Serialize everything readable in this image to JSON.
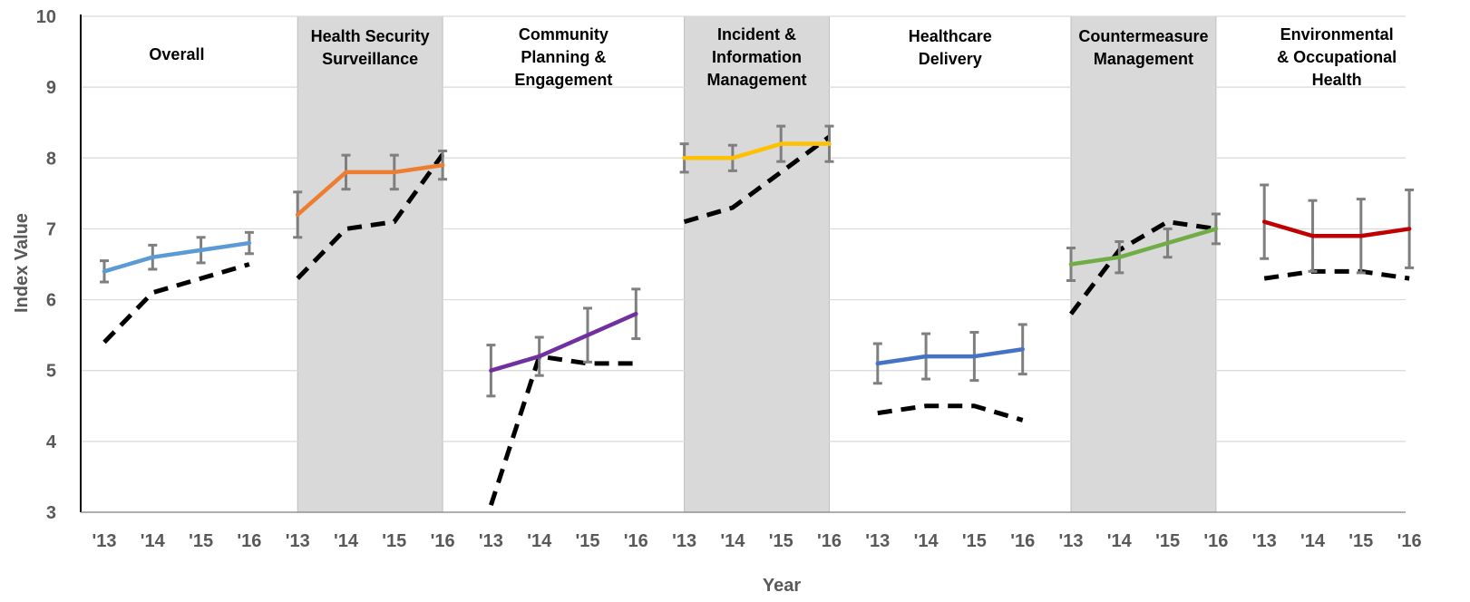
{
  "chart_data": {
    "type": "line",
    "title": "",
    "xlabel": "Year",
    "ylabel": "Index Value",
    "ylim": [
      3,
      10
    ],
    "yticks": [
      "3",
      "4",
      "5",
      "6",
      "7",
      "8",
      "9",
      "10"
    ],
    "x_tick_labels": [
      "'13",
      "'14",
      "'15",
      "'16"
    ],
    "grid": "horizontal",
    "shaded_panels": [
      1,
      3,
      5
    ],
    "shade_color": "#d9d9d9",
    "error_bar_color": "#7f7f7f",
    "comparison_line_color": "#000000",
    "panels": [
      {
        "title_lines": [
          "Overall"
        ],
        "color": "#5b9bd5",
        "values": [
          6.4,
          6.6,
          6.7,
          6.8
        ],
        "error": [
          0.15,
          0.17,
          0.18,
          0.15
        ],
        "comparison": [
          5.4,
          6.1,
          6.3,
          6.5
        ]
      },
      {
        "title_lines": [
          "Health Security",
          "Surveillance"
        ],
        "color": "#ed7d31",
        "values": [
          7.2,
          7.8,
          7.8,
          7.9
        ],
        "error": [
          0.32,
          0.24,
          0.24,
          0.2
        ],
        "comparison": [
          6.3,
          7.0,
          7.1,
          8.05
        ]
      },
      {
        "title_lines": [
          "Community",
          "Planning &",
          "Engagement"
        ],
        "color": "#7030a0",
        "values": [
          5.0,
          5.2,
          5.5,
          5.8
        ],
        "error": [
          0.36,
          0.27,
          0.38,
          0.35
        ],
        "comparison": [
          3.1,
          5.2,
          5.1,
          5.1
        ]
      },
      {
        "title_lines": [
          "Incident &",
          "Information",
          "Management"
        ],
        "color": "#ffc000",
        "values": [
          8.0,
          8.0,
          8.2,
          8.2
        ],
        "error": [
          0.2,
          0.18,
          0.25,
          0.25
        ],
        "comparison": [
          7.1,
          7.3,
          7.8,
          8.3
        ]
      },
      {
        "title_lines": [
          "Healthcare",
          "Delivery"
        ],
        "color": "#4472c4",
        "values": [
          5.1,
          5.2,
          5.2,
          5.3
        ],
        "error": [
          0.28,
          0.32,
          0.34,
          0.35
        ],
        "comparison": [
          4.4,
          4.5,
          4.5,
          4.3
        ]
      },
      {
        "title_lines": [
          "Countermeasure",
          "Management"
        ],
        "color": "#70ad47",
        "values": [
          6.5,
          6.6,
          6.8,
          7.0
        ],
        "error": [
          0.23,
          0.22,
          0.2,
          0.21
        ],
        "comparison": [
          5.8,
          6.7,
          7.1,
          7.0
        ]
      },
      {
        "title_lines": [
          "Environmental",
          "& Occupational",
          "Health"
        ],
        "color": "#c00000",
        "values": [
          7.1,
          6.9,
          6.9,
          7.0
        ],
        "error": [
          0.52,
          0.5,
          0.52,
          0.55
        ],
        "comparison": [
          6.3,
          6.4,
          6.4,
          6.3
        ]
      }
    ]
  }
}
